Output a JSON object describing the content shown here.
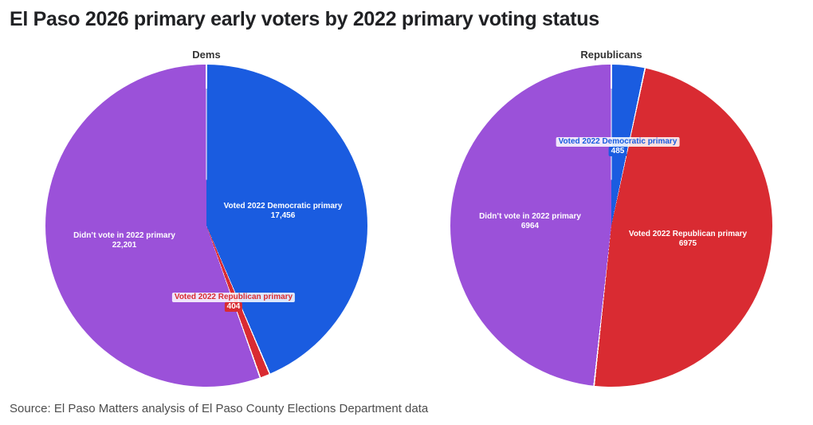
{
  "header": {
    "title": "El Paso 2026 primary early voters by 2022 primary voting status"
  },
  "footer": {
    "source": "Source: El Paso Matters analysis of El Paso County Elections Department data"
  },
  "colors": {
    "democratic_blue": "#1a5ce0",
    "republican_red": "#d92b32",
    "no_vote_purple": "#9b51d9",
    "background": "#ffffff",
    "title_text": "#202124",
    "source_text": "#4d4d4d"
  },
  "chart_data": [
    {
      "type": "pie",
      "title": "Dems",
      "legend_position": "none",
      "slices": [
        {
          "label": "Voted 2022 Democratic primary",
          "value": 17456,
          "display_value": "17,456",
          "color": "#1a5ce0"
        },
        {
          "label": "Voted 2022 Republican primary",
          "value": 404,
          "display_value": "404",
          "color": "#d92b32"
        },
        {
          "label": "Didn’t vote in 2022 primary",
          "value": 22201,
          "display_value": "22,201",
          "color": "#9b51d9"
        }
      ]
    },
    {
      "type": "pie",
      "title": "Republicans",
      "legend_position": "none",
      "slices": [
        {
          "label": "Voted 2022 Democratic primary",
          "value": 485,
          "display_value": "485",
          "color": "#1a5ce0"
        },
        {
          "label": "Voted 2022 Republican primary",
          "value": 6975,
          "display_value": "6975",
          "color": "#d92b32"
        },
        {
          "label": "Didn’t vote in 2022 primary",
          "value": 6964,
          "display_value": "6964",
          "color": "#9b51d9"
        }
      ]
    }
  ]
}
